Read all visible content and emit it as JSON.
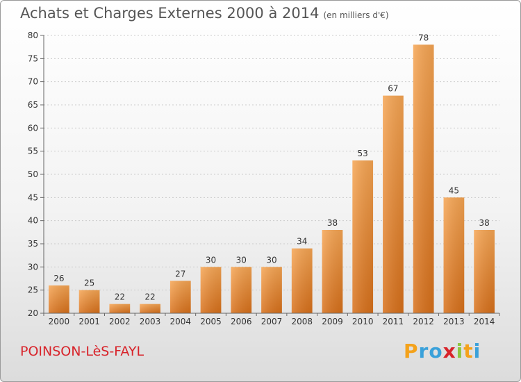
{
  "title": "Achats et Charges Externes 2000 à 2014",
  "subtitle": "(en milliers d'€)",
  "commune": "POINSON-LèS-FAYL",
  "logo": {
    "letters": [
      "P",
      "r",
      "o",
      "x",
      "i",
      "t",
      "i"
    ],
    "colors": [
      "#f4a21b",
      "#3aa1da",
      "#3aa1da",
      "#d8232a",
      "#8dc63f",
      "#f4a21b",
      "#3aa1da"
    ]
  },
  "colors": {
    "bar_top": "#f6a553",
    "bar_bottom": "#d8701a",
    "grid": "#cccccc",
    "axis": "#666666",
    "commune": "#d8232a"
  },
  "chart_data": {
    "type": "bar",
    "title": "Achats et Charges Externes 2000 à 2014",
    "subtitle": "(en milliers d'€)",
    "categories": [
      "2000",
      "2001",
      "2002",
      "2003",
      "2004",
      "2005",
      "2006",
      "2007",
      "2008",
      "2009",
      "2010",
      "2011",
      "2012",
      "2013",
      "2014"
    ],
    "values": [
      26,
      25,
      22,
      22,
      27,
      30,
      30,
      30,
      34,
      38,
      53,
      67,
      78,
      45,
      38
    ],
    "ylim": [
      20,
      80
    ],
    "yticks": [
      20,
      25,
      30,
      35,
      40,
      45,
      50,
      55,
      60,
      65,
      70,
      75,
      80
    ],
    "grid": true,
    "legend": "none"
  }
}
